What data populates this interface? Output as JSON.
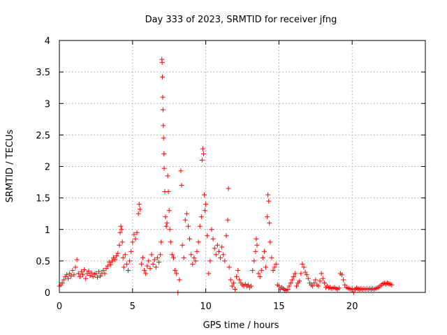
{
  "chart_data": {
    "type": "scatter",
    "title": "Day 333 of 2023, SRMTID for receiver jfng",
    "xlabel": "GPS time / hours",
    "ylabel": "SRMTID / TECUs",
    "xlim": [
      0,
      25
    ],
    "ylim": [
      0,
      4
    ],
    "xticks": [
      0,
      5,
      10,
      15,
      20
    ],
    "xtick_labels": [
      "0",
      "5",
      "10",
      "15",
      "20"
    ],
    "yticks": [
      0,
      0.5,
      1,
      1.5,
      2,
      2.5,
      3,
      3.5,
      4
    ],
    "ytick_labels": [
      "0",
      "0.5",
      "1",
      "1.5",
      "2",
      "2.5",
      "3",
      "3.5",
      "4"
    ],
    "grid": true,
    "marker": "+",
    "series": [
      {
        "name": "SRMTID",
        "color": "#ff0000",
        "points": [
          [
            0.0,
            0.1
          ],
          [
            0.1,
            0.12
          ],
          [
            0.2,
            0.15
          ],
          [
            0.3,
            0.2
          ],
          [
            0.4,
            0.25
          ],
          [
            0.5,
            0.28
          ],
          [
            0.6,
            0.22
          ],
          [
            0.7,
            0.3
          ],
          [
            0.8,
            0.26
          ],
          [
            0.9,
            0.35
          ],
          [
            1.0,
            0.28
          ],
          [
            1.1,
            0.4
          ],
          [
            1.2,
            0.52
          ],
          [
            1.3,
            0.3
          ],
          [
            1.4,
            0.25
          ],
          [
            1.5,
            0.33
          ],
          [
            1.6,
            0.28
          ],
          [
            1.7,
            0.36
          ],
          [
            1.8,
            0.22
          ],
          [
            1.9,
            0.3
          ],
          [
            2.0,
            0.34
          ],
          [
            2.1,
            0.27
          ],
          [
            2.2,
            0.31
          ],
          [
            2.3,
            0.25
          ],
          [
            2.4,
            0.29
          ],
          [
            2.5,
            0.3
          ],
          [
            2.6,
            0.24
          ],
          [
            2.7,
            0.33
          ],
          [
            2.8,
            0.26
          ],
          [
            2.9,
            0.3
          ],
          [
            3.0,
            0.35
          ],
          [
            3.1,
            0.3
          ],
          [
            3.2,
            0.38
          ],
          [
            3.3,
            0.42
          ],
          [
            3.4,
            0.48
          ],
          [
            3.5,
            0.44
          ],
          [
            3.6,
            0.5
          ],
          [
            3.7,
            0.55
          ],
          [
            3.8,
            0.52
          ],
          [
            3.9,
            0.58
          ],
          [
            4.0,
            0.62
          ],
          [
            4.1,
            0.75
          ],
          [
            4.15,
            0.95
          ],
          [
            4.2,
            1.05
          ],
          [
            4.25,
            1.0
          ],
          [
            4.3,
            0.8
          ],
          [
            4.35,
            0.55
          ],
          [
            4.4,
            0.4
          ],
          [
            4.5,
            0.6
          ],
          [
            4.6,
            0.45
          ],
          [
            4.7,
            0.35
          ],
          [
            4.8,
            0.5
          ],
          [
            4.9,
            0.65
          ],
          [
            5.0,
            0.8
          ],
          [
            5.1,
            0.92
          ],
          [
            5.2,
            0.85
          ],
          [
            5.3,
            0.95
          ],
          [
            5.4,
            1.25
          ],
          [
            5.45,
            1.4
          ],
          [
            5.5,
            1.32
          ],
          [
            5.6,
            0.45
          ],
          [
            5.7,
            0.55
          ],
          [
            5.8,
            0.35
          ],
          [
            5.9,
            0.3
          ],
          [
            6.0,
            0.42
          ],
          [
            6.1,
            0.5
          ],
          [
            6.2,
            0.38
          ],
          [
            6.3,
            0.6
          ],
          [
            6.4,
            0.45
          ],
          [
            6.5,
            0.52
          ],
          [
            6.6,
            0.4
          ],
          [
            6.7,
            0.55
          ],
          [
            6.8,
            0.48
          ],
          [
            6.9,
            0.6
          ],
          [
            6.95,
            0.8
          ],
          [
            7.0,
            3.7
          ],
          [
            7.02,
            3.65
          ],
          [
            7.04,
            3.42
          ],
          [
            7.06,
            3.1
          ],
          [
            7.08,
            2.9
          ],
          [
            7.1,
            2.65
          ],
          [
            7.12,
            2.45
          ],
          [
            7.14,
            2.2
          ],
          [
            7.16,
            1.97
          ],
          [
            7.2,
            1.6
          ],
          [
            7.25,
            1.2
          ],
          [
            7.3,
            1.05
          ],
          [
            7.35,
            1.1
          ],
          [
            7.4,
            1.85
          ],
          [
            7.45,
            1.6
          ],
          [
            7.5,
            1.3
          ],
          [
            7.55,
            1.0
          ],
          [
            7.6,
            0.8
          ],
          [
            7.7,
            0.6
          ],
          [
            7.8,
            0.55
          ],
          [
            7.9,
            0.35
          ],
          [
            8.0,
            0.3
          ],
          [
            8.1,
            0.0
          ],
          [
            8.2,
            0.2
          ],
          [
            8.3,
            1.93
          ],
          [
            8.35,
            1.7
          ],
          [
            8.4,
            0.75
          ],
          [
            8.5,
            0.55
          ],
          [
            8.6,
            1.15
          ],
          [
            8.7,
            1.25
          ],
          [
            8.8,
            1.05
          ],
          [
            8.9,
            0.85
          ],
          [
            9.0,
            0.6
          ],
          [
            9.1,
            0.45
          ],
          [
            9.2,
            0.55
          ],
          [
            9.3,
            0.5
          ],
          [
            9.4,
            0.65
          ],
          [
            9.5,
            0.8
          ],
          [
            9.6,
            1.05
          ],
          [
            9.7,
            1.2
          ],
          [
            9.75,
            2.1
          ],
          [
            9.8,
            2.28
          ],
          [
            9.85,
            2.2
          ],
          [
            9.9,
            1.55
          ],
          [
            9.95,
            1.3
          ],
          [
            10.0,
            1.4
          ],
          [
            10.1,
            0.9
          ],
          [
            10.2,
            0.3
          ],
          [
            10.3,
            0.5
          ],
          [
            10.4,
            1.0
          ],
          [
            10.5,
            0.85
          ],
          [
            10.6,
            0.7
          ],
          [
            10.7,
            0.6
          ],
          [
            10.8,
            0.75
          ],
          [
            10.9,
            0.65
          ],
          [
            11.0,
            0.55
          ],
          [
            11.1,
            0.72
          ],
          [
            11.2,
            0.6
          ],
          [
            11.3,
            0.5
          ],
          [
            11.4,
            0.9
          ],
          [
            11.5,
            1.15
          ],
          [
            11.55,
            1.65
          ],
          [
            11.6,
            0.4
          ],
          [
            11.7,
            0.2
          ],
          [
            11.8,
            0.1
          ],
          [
            11.9,
            0.15
          ],
          [
            12.0,
            0.05
          ],
          [
            12.1,
            0.25
          ],
          [
            12.2,
            0.35
          ],
          [
            12.3,
            0.2
          ],
          [
            12.4,
            0.15
          ],
          [
            12.5,
            0.12
          ],
          [
            12.6,
            0.1
          ],
          [
            12.7,
            0.13
          ],
          [
            12.8,
            0.1
          ],
          [
            12.9,
            0.12
          ],
          [
            13.0,
            0.08
          ],
          [
            13.1,
            0.1
          ],
          [
            13.2,
            0.35
          ],
          [
            13.3,
            0.5
          ],
          [
            13.4,
            0.65
          ],
          [
            13.45,
            0.85
          ],
          [
            13.5,
            0.75
          ],
          [
            13.6,
            0.3
          ],
          [
            13.7,
            0.25
          ],
          [
            13.8,
            0.35
          ],
          [
            13.9,
            0.55
          ],
          [
            14.0,
            0.65
          ],
          [
            14.1,
            0.4
          ],
          [
            14.2,
            1.2
          ],
          [
            14.25,
            1.55
          ],
          [
            14.3,
            1.45
          ],
          [
            14.35,
            1.1
          ],
          [
            14.4,
            0.8
          ],
          [
            14.5,
            0.55
          ],
          [
            14.6,
            0.35
          ],
          [
            14.7,
            0.4
          ],
          [
            14.8,
            0.45
          ],
          [
            14.9,
            0.12
          ],
          [
            15.0,
            0.1
          ],
          [
            15.1,
            0.05
          ],
          [
            15.2,
            0.08
          ],
          [
            15.3,
            0.06
          ],
          [
            15.4,
            0.04
          ],
          [
            15.5,
            0.03
          ],
          [
            15.6,
            0.05
          ],
          [
            15.7,
            0.1
          ],
          [
            15.8,
            0.15
          ],
          [
            15.9,
            0.2
          ],
          [
            16.0,
            0.25
          ],
          [
            16.1,
            0.3
          ],
          [
            16.2,
            0.1
          ],
          [
            16.3,
            0.15
          ],
          [
            16.4,
            0.18
          ],
          [
            16.5,
            0.3
          ],
          [
            16.6,
            0.45
          ],
          [
            16.7,
            0.4
          ],
          [
            16.8,
            0.32
          ],
          [
            16.9,
            0.28
          ],
          [
            17.0,
            0.22
          ],
          [
            17.1,
            0.15
          ],
          [
            17.2,
            0.12
          ],
          [
            17.3,
            0.1
          ],
          [
            17.4,
            0.15
          ],
          [
            17.5,
            0.2
          ],
          [
            17.6,
            0.12
          ],
          [
            17.7,
            0.1
          ],
          [
            17.8,
            0.18
          ],
          [
            17.9,
            0.3
          ],
          [
            18.0,
            0.22
          ],
          [
            18.1,
            0.15
          ],
          [
            18.2,
            0.08
          ],
          [
            18.3,
            0.1
          ],
          [
            18.4,
            0.07
          ],
          [
            18.5,
            0.08
          ],
          [
            18.6,
            0.06
          ],
          [
            18.7,
            0.07
          ],
          [
            18.8,
            0.08
          ],
          [
            18.9,
            0.06
          ],
          [
            19.0,
            0.05
          ],
          [
            19.1,
            0.07
          ],
          [
            19.2,
            0.3
          ],
          [
            19.3,
            0.28
          ],
          [
            19.4,
            0.2
          ],
          [
            19.5,
            0.12
          ],
          [
            19.6,
            0.08
          ],
          [
            19.7,
            0.07
          ],
          [
            19.8,
            0.06
          ],
          [
            19.9,
            0.05
          ],
          [
            20.0,
            0.06
          ],
          [
            20.1,
            0.0
          ],
          [
            20.2,
            0.05
          ],
          [
            20.3,
            0.07
          ],
          [
            20.4,
            0.06
          ],
          [
            20.5,
            0.05
          ],
          [
            20.6,
            0.06
          ],
          [
            20.7,
            0.05
          ],
          [
            20.8,
            0.06
          ],
          [
            20.9,
            0.05
          ],
          [
            21.0,
            0.06
          ],
          [
            21.1,
            0.05
          ],
          [
            21.2,
            0.06
          ],
          [
            21.3,
            0.05
          ],
          [
            21.4,
            0.06
          ],
          [
            21.5,
            0.05
          ],
          [
            21.6,
            0.06
          ],
          [
            21.7,
            0.07
          ],
          [
            21.8,
            0.08
          ],
          [
            21.9,
            0.1
          ],
          [
            22.0,
            0.12
          ],
          [
            22.1,
            0.14
          ],
          [
            22.2,
            0.15
          ],
          [
            22.3,
            0.13
          ],
          [
            22.4,
            0.15
          ],
          [
            22.5,
            0.14
          ],
          [
            22.6,
            0.13
          ],
          [
            22.7,
            0.12
          ]
        ]
      }
    ]
  }
}
